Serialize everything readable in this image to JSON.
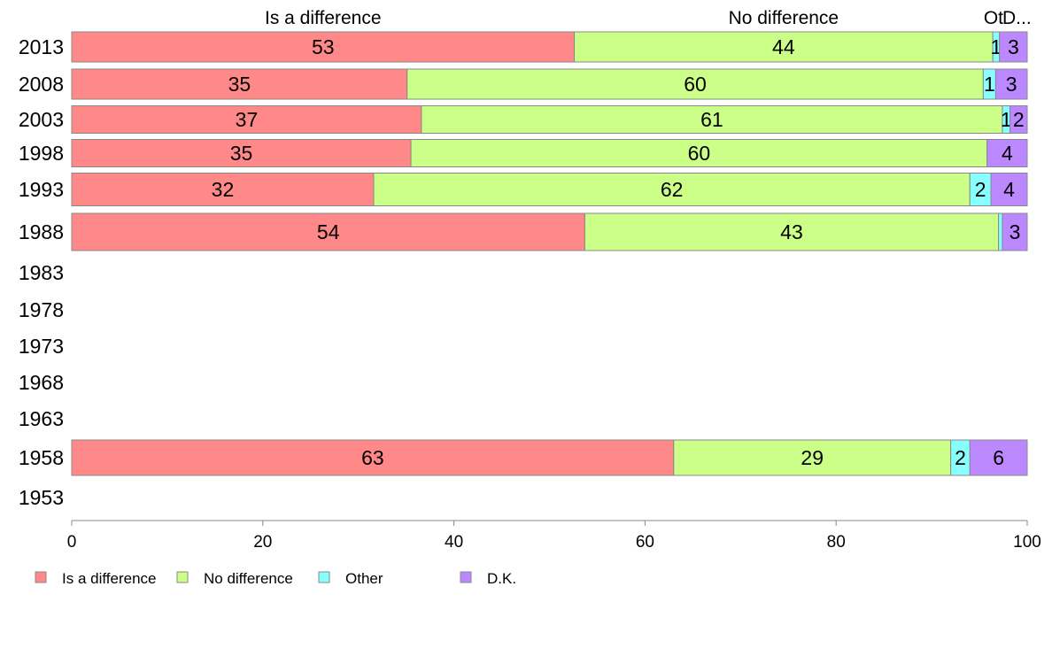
{
  "chart_data": {
    "type": "bar",
    "orientation": "horizontal",
    "stacked": true,
    "categories": [
      "2013",
      "2008",
      "2003",
      "1998",
      "1993",
      "1988",
      "1983",
      "1978",
      "1973",
      "1968",
      "1963",
      "1958",
      "1953"
    ],
    "series": [
      {
        "name": "Is a difference",
        "color": "#ff8888",
        "values": [
          52.6,
          35.1,
          36.6,
          35.5,
          31.6,
          53.7,
          null,
          null,
          null,
          null,
          null,
          63.0,
          null
        ],
        "labels": [
          "53",
          "35",
          "37",
          "35",
          "32",
          "54",
          "",
          "",
          "",
          "",
          "",
          "63",
          ""
        ]
      },
      {
        "name": "No difference",
        "color": "#ccff88",
        "values": [
          43.8,
          60.3,
          60.8,
          60.3,
          62.4,
          43.3,
          null,
          null,
          null,
          null,
          null,
          29.0,
          null
        ],
        "labels": [
          "44",
          "60",
          "61",
          "60",
          "62",
          "43",
          "",
          "",
          "",
          "",
          "",
          "29",
          ""
        ]
      },
      {
        "name": "Other",
        "color": "#88ffff",
        "values": [
          0.7,
          1.3,
          0.8,
          0.0,
          2.2,
          0.4,
          null,
          null,
          null,
          null,
          null,
          2.0,
          null
        ],
        "labels": [
          "1",
          "1",
          "1",
          "",
          "2",
          "",
          "",
          "",
          "",
          "",
          "",
          "2",
          ""
        ]
      },
      {
        "name": "D.K.",
        "color": "#bb88ff",
        "values": [
          2.9,
          3.3,
          1.8,
          4.2,
          3.8,
          2.6,
          null,
          null,
          null,
          null,
          null,
          6.0,
          null
        ],
        "labels": [
          "3",
          "3",
          "2",
          "4",
          "4",
          "3",
          "",
          "",
          "",
          "",
          "",
          "6",
          ""
        ]
      }
    ],
    "column_headers": [
      "Is a difference",
      "No difference",
      "Ot",
      "D..."
    ],
    "x_ticks": [
      "0",
      "20",
      "40",
      "60",
      "80",
      "100"
    ],
    "xlim": [
      0,
      100
    ],
    "title": "",
    "xlabel": "",
    "ylabel": "",
    "grid": false,
    "legend_position": "bottom-left",
    "axis_color": "#888888",
    "bar_border_color": "#888888"
  },
  "legend": {
    "items": [
      {
        "name": "Is a difference",
        "color": "#ff8888"
      },
      {
        "name": "No difference",
        "color": "#ccff88"
      },
      {
        "name": "Other",
        "color": "#88ffff"
      },
      {
        "name": "D.K.",
        "color": "#bb88ff"
      }
    ]
  }
}
